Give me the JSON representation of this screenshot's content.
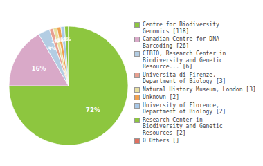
{
  "chart_data": {
    "type": "pie",
    "categories": [
      "Centre for Biodiversity\nGenomics [118]",
      "Canadian Centre for DNA\nBarcoding [26]",
      "CIBIO, Research Center in\nBiodiversity and Genetic\nResource... [6]",
      "Universita di Firenze,\nDepartment of Biology [3]",
      "Natural History Museum, London [3]",
      "Unknown [2]",
      "University of Florence,\nDepartment of Biology [2]",
      "Research Center in\nBiodiversity and Genetic\nResources [2]",
      "0 Others []"
    ],
    "values": [
      72,
      16,
      3,
      1,
      1,
      1,
      1,
      1,
      0.0001
    ],
    "value_labels": [
      "72%",
      "16%",
      "3%",
      "1%",
      "1%",
      "1%",
      "1%",
      "1%",
      null
    ],
    "colors": [
      "#8dc63f",
      "#d9a9c8",
      "#b3cde3",
      "#e8a090",
      "#e8dfa0",
      "#f0a050",
      "#a8c8e8",
      "#8dc63f",
      "#e07060"
    ],
    "data_labels": true,
    "legend": "right"
  }
}
